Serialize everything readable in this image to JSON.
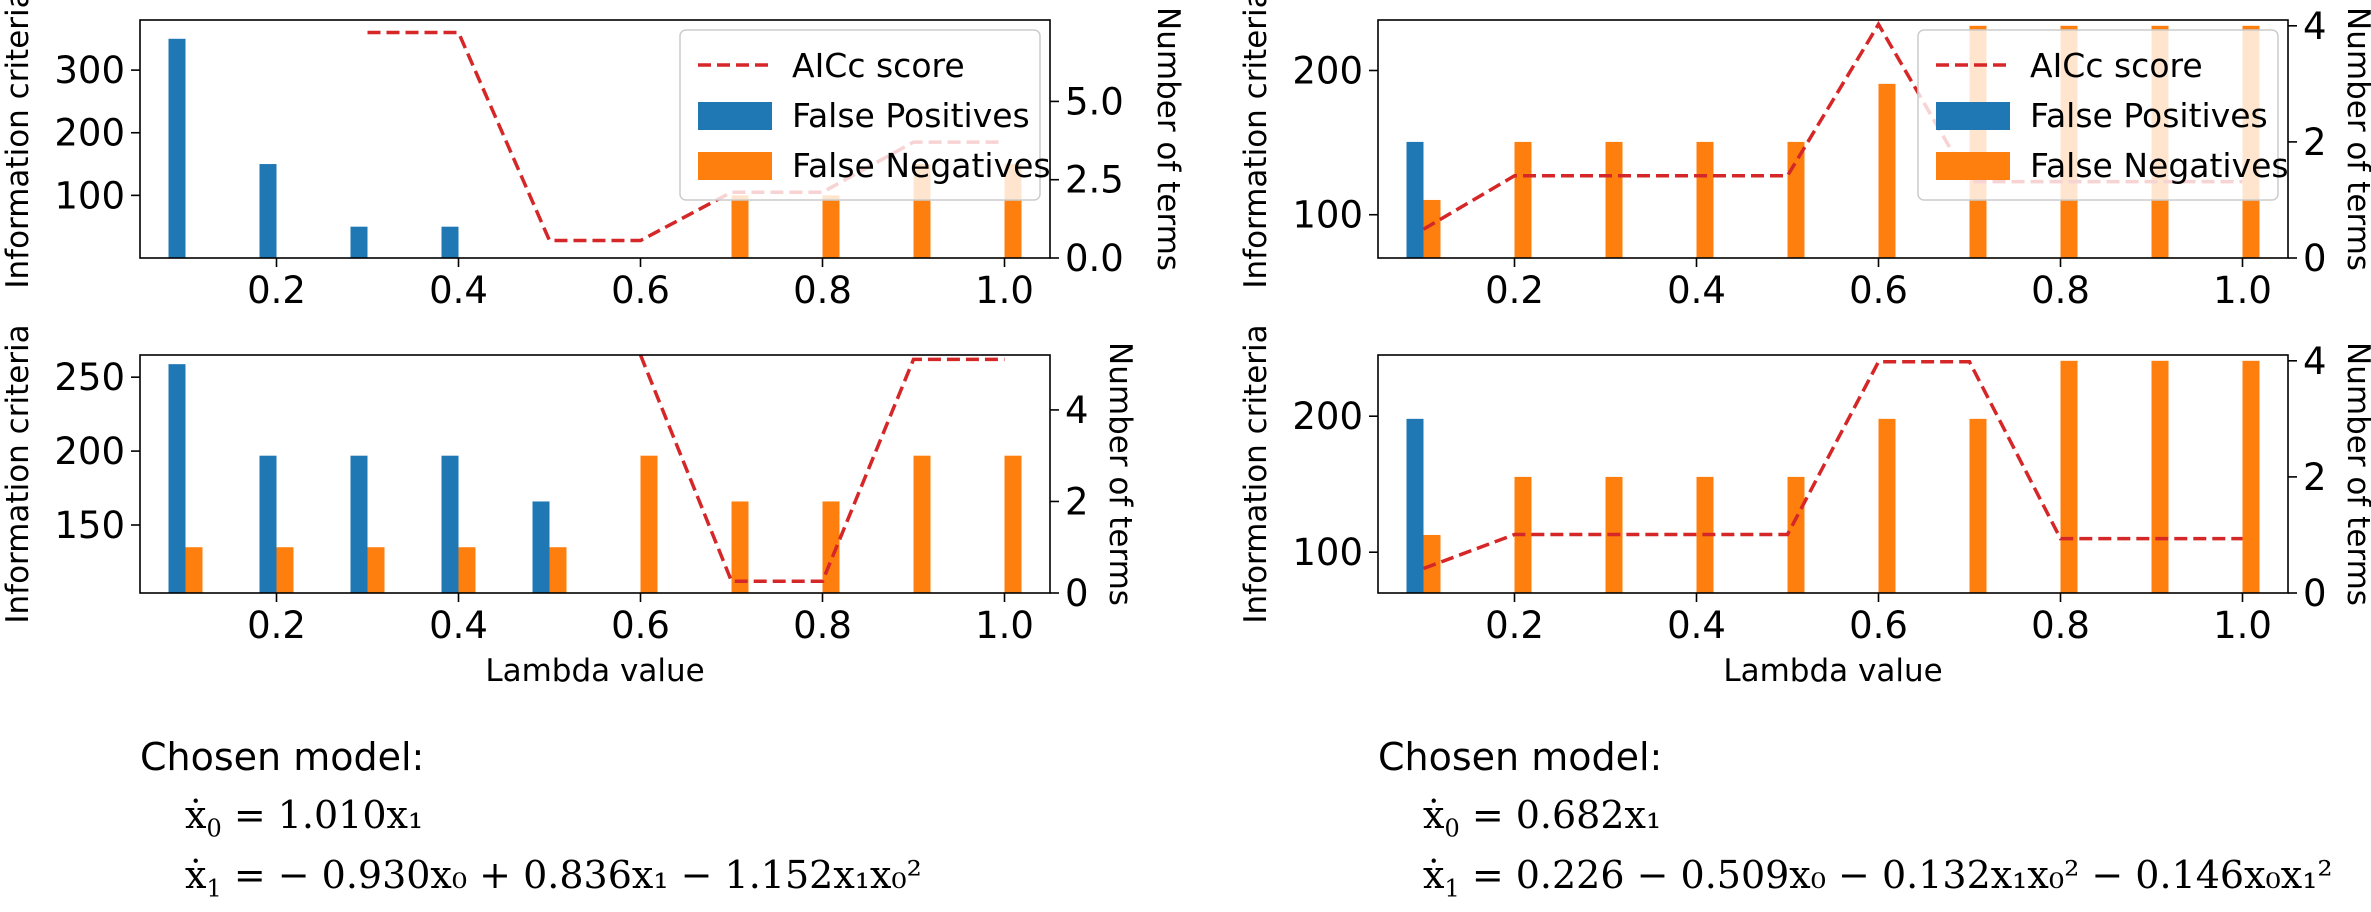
{
  "legend_labels": {
    "aicc": "AICc score",
    "fp": "False Positives",
    "fn": "False Negatives"
  },
  "colors": {
    "fp": "#1f77b4",
    "fn": "#ff7f0e",
    "aicc": "#d62728"
  },
  "chart_data": [
    {
      "type": "bar",
      "panel": "top-left",
      "legend": "top-right",
      "x": [
        0.1,
        0.2,
        0.3,
        0.4,
        0.5,
        0.6,
        0.7,
        0.8,
        0.9,
        1.0
      ],
      "xlim": [
        0.05,
        1.05
      ],
      "xticks": [
        0.2,
        0.4,
        0.6,
        0.8,
        1.0
      ],
      "xlabel": "",
      "ylabel": "Information criteria",
      "ylim": [
        0,
        380
      ],
      "yticks": [
        100,
        200,
        300
      ],
      "y2label": "Number of terms",
      "y2lim": [
        0,
        7.6
      ],
      "y2ticks": [
        0.0,
        2.5,
        5.0
      ],
      "aicc": [
        null,
        null,
        360,
        360,
        28,
        28,
        105,
        105,
        185,
        185
      ],
      "false_positives": [
        7,
        3,
        1,
        1,
        0,
        0,
        0,
        0,
        0,
        0
      ],
      "false_negatives": [
        0,
        0,
        0,
        0,
        0,
        0,
        2,
        2,
        3,
        3
      ]
    },
    {
      "type": "bar",
      "panel": "bottom-left",
      "x": [
        0.1,
        0.2,
        0.3,
        0.4,
        0.5,
        0.6,
        0.7,
        0.8,
        0.9,
        1.0
      ],
      "xlim": [
        0.05,
        1.05
      ],
      "xticks": [
        0.2,
        0.4,
        0.6,
        0.8,
        1.0
      ],
      "xlabel": "Lambda value",
      "ylabel": "Information criteria",
      "ylim": [
        104,
        265
      ],
      "yticks": [
        150,
        200,
        250
      ],
      "y2label": "Number of terms",
      "y2lim": [
        0,
        5.2
      ],
      "y2ticks": [
        0,
        2,
        4
      ],
      "aicc": [
        null,
        null,
        null,
        null,
        null,
        265,
        112,
        112,
        262,
        262
      ],
      "false_positives": [
        5,
        3,
        3,
        3,
        2,
        0,
        0,
        0,
        0,
        0
      ],
      "false_negatives": [
        1,
        1,
        1,
        1,
        1,
        3,
        2,
        2,
        3,
        3
      ]
    },
    {
      "type": "bar",
      "panel": "top-right",
      "legend": "top-right",
      "x": [
        0.1,
        0.2,
        0.3,
        0.4,
        0.5,
        0.6,
        0.7,
        0.8,
        0.9,
        1.0
      ],
      "xlim": [
        0.05,
        1.05
      ],
      "xticks": [
        0.2,
        0.4,
        0.6,
        0.8,
        1.0
      ],
      "xlabel": "",
      "ylabel": "Information criteria",
      "ylim": [
        70,
        235
      ],
      "yticks": [
        100,
        200
      ],
      "y2label": "Number of terms",
      "y2lim": [
        0,
        4.1
      ],
      "y2ticks": [
        0,
        2,
        4
      ],
      "aicc": [
        90,
        127,
        127,
        127,
        127,
        232,
        123,
        123,
        123,
        123
      ],
      "false_positives": [
        2,
        0,
        0,
        0,
        0,
        0,
        0,
        0,
        0,
        0
      ],
      "false_negatives": [
        1,
        2,
        2,
        2,
        2,
        3,
        4,
        4,
        4,
        4
      ]
    },
    {
      "type": "bar",
      "panel": "bottom-right",
      "x": [
        0.1,
        0.2,
        0.3,
        0.4,
        0.5,
        0.6,
        0.7,
        0.8,
        0.9,
        1.0
      ],
      "xlim": [
        0.05,
        1.05
      ],
      "xticks": [
        0.2,
        0.4,
        0.6,
        0.8,
        1.0
      ],
      "xlabel": "Lambda value",
      "ylabel": "Information criteria",
      "ylim": [
        70,
        245
      ],
      "yticks": [
        100,
        200
      ],
      "y2label": "Number of terms",
      "y2lim": [
        0,
        4.1
      ],
      "y2ticks": [
        0,
        2,
        4
      ],
      "aicc": [
        88,
        113,
        113,
        113,
        113,
        240,
        240,
        110,
        110,
        110
      ],
      "false_positives": [
        3,
        0,
        0,
        0,
        0,
        0,
        0,
        0,
        0,
        0
      ],
      "false_negatives": [
        1,
        2,
        2,
        2,
        2,
        3,
        3,
        4,
        4,
        4
      ]
    }
  ],
  "models": [
    {
      "label": "Chosen model:",
      "eq0": {
        "lhs": "x",
        "sub": "0",
        "rhs": "= 1.010x₁"
      },
      "eq1": {
        "lhs": "x",
        "sub": "1",
        "rhs": "= − 0.930x₀ + 0.836x₁ − 1.152x₁x₀²"
      }
    },
    {
      "label": "Chosen model:",
      "eq0": {
        "lhs": "x",
        "sub": "0",
        "rhs": "= 0.682x₁"
      },
      "eq1": {
        "lhs": "x",
        "sub": "1",
        "rhs": "= 0.226 − 0.509x₀ − 0.132x₁x₀² − 0.146x₀x₁²"
      }
    }
  ]
}
